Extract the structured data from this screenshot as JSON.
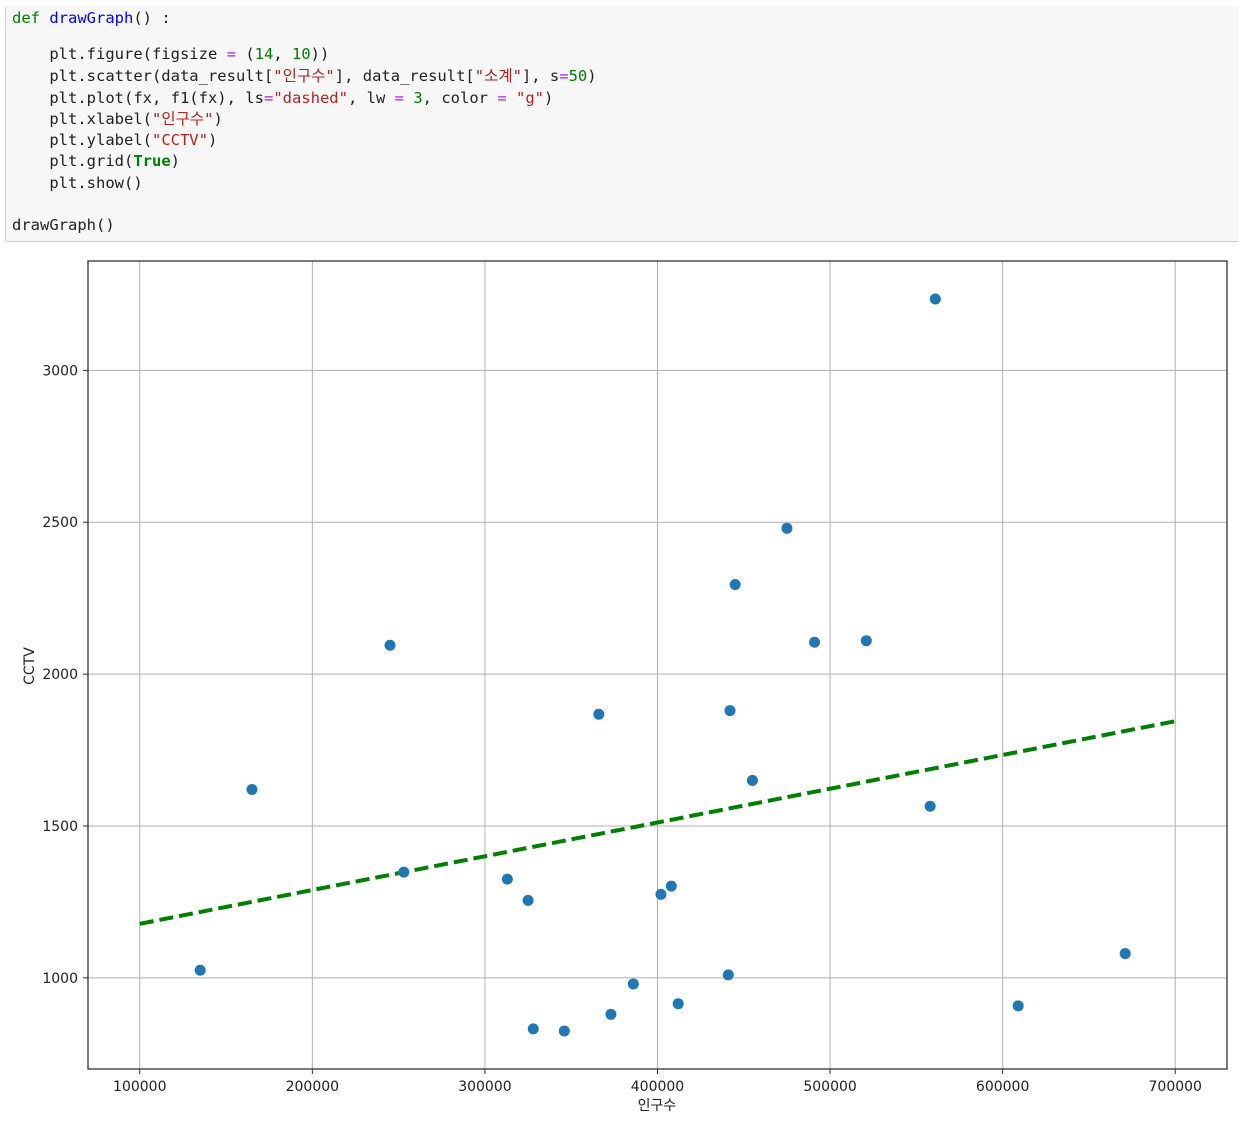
{
  "code": {
    "line_def": {
      "kw": "def",
      "fn": "drawGraph",
      "rest": "() :"
    },
    "line_figure": {
      "a": "plt.figure(figsize ",
      "op": "=",
      "b": " (",
      "n1": "14",
      "c": ", ",
      "n2": "10",
      "d": "))"
    },
    "line_scatter": {
      "a": "plt.scatter(data_result[",
      "s1": "\"인구수\"",
      "b": "], data_result[",
      "s2": "\"소계\"",
      "c": "], s",
      "op": "=",
      "n": "50",
      "d": ")"
    },
    "line_plot": {
      "a": "plt.plot(fx, f1(fx), ls",
      "op1": "=",
      "s1": "\"dashed\"",
      "b": ", lw ",
      "op2": "=",
      "n": " 3",
      "c": ", color ",
      "op3": "=",
      "s2": " \"g\"",
      "d": ")"
    },
    "line_xlabel": {
      "a": "plt.xlabel(",
      "s": "\"인구수\"",
      "b": ")"
    },
    "line_ylabel": {
      "a": "plt.ylabel(",
      "s": "\"CCTV\"",
      "b": ")"
    },
    "line_grid": {
      "a": "plt.grid(",
      "kw": "True",
      "b": ")"
    },
    "line_show": {
      "a": "plt.show()"
    },
    "line_call": {
      "a": "drawGraph()"
    }
  },
  "colors": {
    "scatter": "#1f77b4",
    "trend": "#008000",
    "grid": "#b0b0b0",
    "axes": "#333333"
  },
  "chart_data": {
    "type": "scatter",
    "title": "",
    "xlabel": "인구수",
    "ylabel": "CCTV",
    "xlim": [
      70000,
      730000
    ],
    "ylim": [
      700,
      3360
    ],
    "xticks": [
      100000,
      200000,
      300000,
      400000,
      500000,
      600000,
      700000
    ],
    "yticks": [
      1000,
      1500,
      2000,
      2500,
      3000
    ],
    "grid": true,
    "points": [
      [
        135000,
        1025
      ],
      [
        165000,
        1620
      ],
      [
        245000,
        2095
      ],
      [
        253000,
        1348
      ],
      [
        313000,
        1325
      ],
      [
        325000,
        1255
      ],
      [
        328000,
        832
      ],
      [
        346000,
        825
      ],
      [
        366000,
        1868
      ],
      [
        373000,
        880
      ],
      [
        386000,
        980
      ],
      [
        402000,
        1275
      ],
      [
        408000,
        1302
      ],
      [
        412000,
        915
      ],
      [
        441000,
        1010
      ],
      [
        442000,
        1880
      ],
      [
        445000,
        2295
      ],
      [
        455000,
        1650
      ],
      [
        475000,
        2480
      ],
      [
        491000,
        2105
      ],
      [
        521000,
        2110
      ],
      [
        558000,
        1565
      ],
      [
        561000,
        3235
      ],
      [
        609000,
        908
      ],
      [
        671000,
        1080
      ]
    ],
    "trend_line": {
      "x": [
        100000,
        700000
      ],
      "y": [
        1178,
        1845
      ],
      "style": "dashed"
    }
  }
}
